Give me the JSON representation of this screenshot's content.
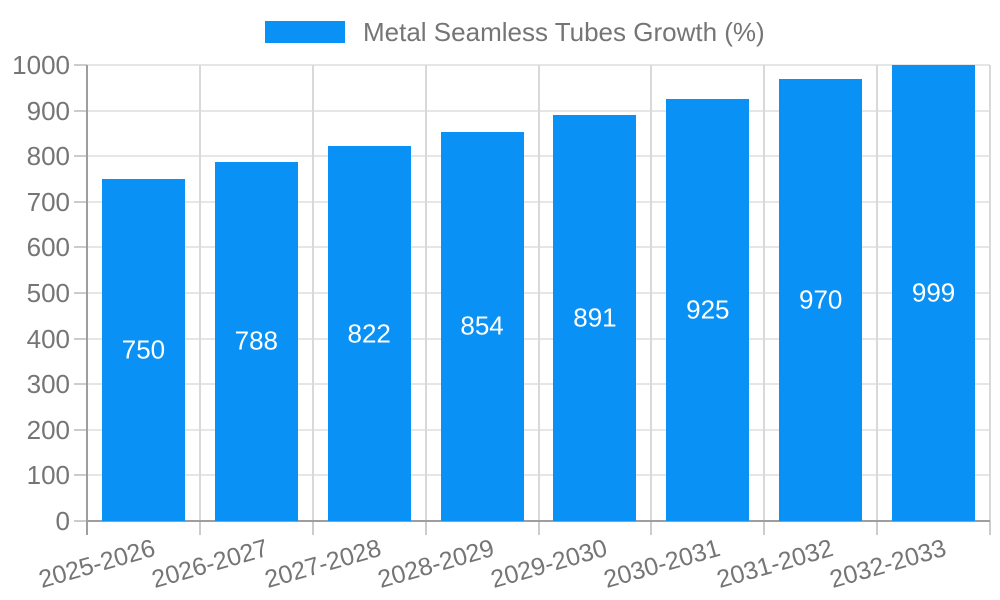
{
  "chart_data": {
    "type": "bar",
    "title": "Metal Seamless Tubes Growth (%)",
    "categories": [
      "2025-2026",
      "2026-2027",
      "2027-2028",
      "2028-2029",
      "2029-2030",
      "2030-2031",
      "2031-2032",
      "2032-2033"
    ],
    "values": [
      750,
      788,
      822,
      854,
      891,
      925,
      970,
      999
    ],
    "xlabel": "",
    "ylabel": "",
    "ylim": [
      0,
      1000
    ],
    "ytick_step": 100,
    "ytick_labels": [
      "0",
      "100",
      "200",
      "300",
      "400",
      "500",
      "600",
      "700",
      "800",
      "900",
      "1000"
    ],
    "grid": "on",
    "legend_position": "top-center",
    "value_label_position": "inside-middle"
  },
  "colors": {
    "bar": "#0a91f5",
    "value_label": "#ffffff",
    "axis_text": "#757575",
    "axis_line": "#9e9e9e",
    "grid_horizontal": "#e6e6e6",
    "grid_vertical": "#d9d9d9",
    "tick": "#cccccc",
    "background": "#ffffff"
  }
}
